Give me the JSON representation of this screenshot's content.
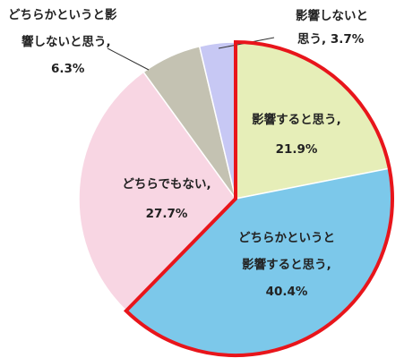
{
  "chart_data": {
    "type": "pie",
    "title": "",
    "start_angle_deg": 0,
    "direction": "clockwise",
    "slices": [
      {
        "label_lines": [
          "影響すると思う,",
          "21.9%"
        ],
        "category": "影響すると思う",
        "value": 21.9,
        "color": "#e6eeb8",
        "highlighted": true
      },
      {
        "label_lines": [
          "どちらかというと",
          "影響すると思う,",
          "40.4%"
        ],
        "category": "どちらかというと影響すると思う",
        "value": 40.4,
        "color": "#7cc8ea",
        "highlighted": true
      },
      {
        "label_lines": [
          "どちらでもない,",
          "27.7%"
        ],
        "category": "どちらでもない",
        "value": 27.7,
        "color": "#f8d6e3",
        "highlighted": false
      },
      {
        "label_lines": [
          "どちらかというと影",
          "響しないと思う,",
          "6.3%"
        ],
        "category": "どちらかというと影響しないと思う",
        "value": 6.3,
        "color": "#c4c2b2",
        "highlighted": false
      },
      {
        "label_lines": [
          "影響しないと",
          "思う, 3.7%"
        ],
        "category": "影響しないと思う",
        "value": 3.7,
        "color": "#c7c8f4",
        "highlighted": false
      }
    ],
    "highlight_color": "#e8151b",
    "legend": "none"
  }
}
